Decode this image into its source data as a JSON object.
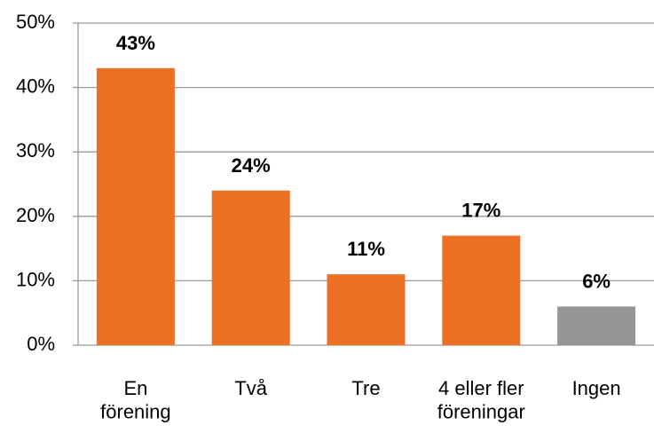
{
  "chart_data": {
    "type": "bar",
    "categories": [
      "En\nförening",
      "Två",
      "Tre",
      "4 eller fler\nföreningar",
      "Ingen"
    ],
    "values": [
      43,
      24,
      11,
      17,
      6
    ],
    "value_labels": [
      "43%",
      "24%",
      "11%",
      "17%",
      "6%"
    ],
    "colors": [
      "#ed7125",
      "#ed7125",
      "#ed7125",
      "#ed7125",
      "#969696"
    ],
    "ylim": [
      0,
      50
    ],
    "yticks": [
      {
        "value": 0,
        "label": "0%"
      },
      {
        "value": 10,
        "label": "10%"
      },
      {
        "value": 20,
        "label": "20%"
      },
      {
        "value": 30,
        "label": "30%"
      },
      {
        "value": 40,
        "label": "40%"
      },
      {
        "value": 50,
        "label": "50%"
      }
    ],
    "grid": true
  }
}
